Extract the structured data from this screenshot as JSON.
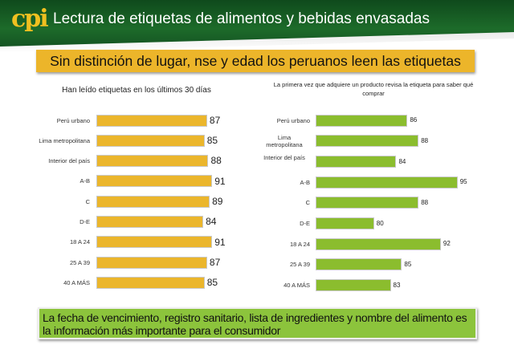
{
  "header": {
    "logo": "cpi",
    "title": "Lectura de etiquetas de alimentos y bebidas envasadas"
  },
  "banner": "Sin distinción de lugar, nse y edad los peruanos leen las etiquetas",
  "footer": "La fecha de vencimiento, registro sanitario, lista de ingredientes y nombre del alimento es la información más importante para el consumidor",
  "colors": {
    "header": "#1a6127",
    "logo": "#f0c020",
    "banner": "#ecb52a",
    "left_bars": "#ebb62c",
    "right_bars": "#8bbd2e",
    "footer": "#8cc43c"
  },
  "chart_data": [
    {
      "type": "bar",
      "orientation": "horizontal",
      "title": "Han leído etiquetas en los últimos 30 días",
      "categories": [
        "Perú urbano",
        "Lima metropolitana",
        "Interior del país",
        "A-B",
        "C",
        "D-E",
        "18 A 24",
        "25 A 39",
        "40 A MÁS"
      ],
      "values": [
        87,
        85,
        88,
        91,
        89,
        84,
        91,
        87,
        85
      ],
      "grid": false
    },
    {
      "type": "bar",
      "orientation": "horizontal",
      "title": "La primera vez que adquiere un producto revisa la etiqueta para saber qué comprar",
      "categories": [
        "Perú urbano",
        "Lima metropolitana",
        "Interior del país",
        "A-B",
        "C",
        "D-E",
        "18 A 24",
        "25 A 39",
        "40 A MÁS"
      ],
      "values": [
        86,
        88,
        84,
        95,
        88,
        80,
        92,
        85,
        83
      ],
      "grid": false
    }
  ]
}
